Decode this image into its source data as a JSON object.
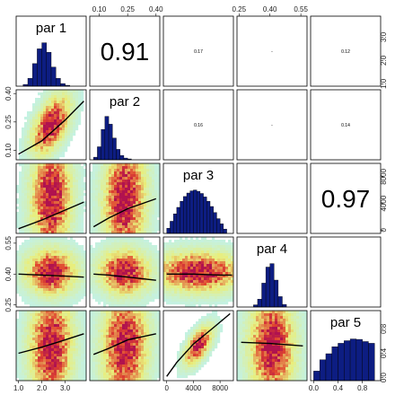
{
  "chart_data": {
    "type": "scatter-matrix",
    "parameters": [
      {
        "name": "par 1",
        "range": [
          0.9,
          3.9
        ],
        "ticks": [
          1.0,
          2.0,
          3.0
        ],
        "tick_labels": [
          "1.0",
          "2.0",
          "3.0"
        ],
        "hist": {
          "bins": [
            1.2,
            1.4,
            1.6,
            1.8,
            2.0,
            2.2,
            2.4,
            2.6,
            2.8,
            3.0,
            3.2
          ],
          "counts": [
            0.04,
            0.18,
            0.52,
            0.86,
            1.0,
            0.78,
            0.44,
            0.18,
            0.06,
            0.02
          ]
        }
      },
      {
        "name": "par 2",
        "range": [
          0.05,
          0.42
        ],
        "ticks": [
          0.1,
          0.25,
          0.4
        ],
        "tick_labels": [
          "0.10",
          "0.25",
          "0.40"
        ],
        "hist": {
          "bins": [
            0.07,
            0.09,
            0.11,
            0.13,
            0.15,
            0.17,
            0.19,
            0.21,
            0.23,
            0.25,
            0.27
          ],
          "counts": [
            0.06,
            0.3,
            0.7,
            1.0,
            0.82,
            0.5,
            0.24,
            0.1,
            0.04,
            0.02
          ]
        }
      },
      {
        "name": "par 3",
        "range": [
          -500,
          10000
        ],
        "ticks": [
          0,
          4000,
          8000
        ],
        "tick_labels": [
          "0",
          "4000",
          "8000"
        ],
        "hist": {
          "bins": [
            0,
            500,
            1000,
            1500,
            2000,
            2500,
            3000,
            3500,
            4000,
            4500,
            5000,
            5500,
            6000,
            6500,
            7000,
            7500,
            8000,
            8500,
            9000
          ],
          "counts": [
            0.12,
            0.28,
            0.45,
            0.6,
            0.74,
            0.85,
            0.93,
            0.98,
            1.0,
            0.97,
            0.92,
            0.84,
            0.74,
            0.62,
            0.48,
            0.34,
            0.22,
            0.1
          ]
        }
      },
      {
        "name": "par 4",
        "range": [
          0.24,
          0.58
        ],
        "ticks": [
          0.25,
          0.4,
          0.55
        ],
        "tick_labels": [
          "0.25",
          "0.40",
          "0.55"
        ],
        "hist": {
          "bins": [
            0.32,
            0.34,
            0.36,
            0.38,
            0.4,
            0.42,
            0.44,
            0.46,
            0.48
          ],
          "counts": [
            0.05,
            0.18,
            0.55,
            0.92,
            1.0,
            0.62,
            0.24,
            0.06
          ]
        }
      },
      {
        "name": "par 5",
        "range": [
          -0.05,
          1.1
        ],
        "ticks": [
          0.0,
          0.4,
          0.8
        ],
        "tick_labels": [
          "0.0",
          "0.4",
          "0.8"
        ],
        "hist": {
          "bins": [
            0.0,
            0.1,
            0.2,
            0.3,
            0.4,
            0.5,
            0.6,
            0.7,
            0.8,
            0.9,
            1.0
          ],
          "counts": [
            0.22,
            0.48,
            0.62,
            0.78,
            0.86,
            0.92,
            0.96,
            0.95,
            0.9,
            0.86
          ]
        }
      }
    ],
    "correlations": [
      {
        "row": 1,
        "col": 2,
        "label": "0.91",
        "size": "large"
      },
      {
        "row": 1,
        "col": 3,
        "label": "0.17",
        "size": "tiny"
      },
      {
        "row": 1,
        "col": 4,
        "label": "-",
        "size": "tiny"
      },
      {
        "row": 1,
        "col": 5,
        "label": "0.12",
        "size": "tiny"
      },
      {
        "row": 2,
        "col": 3,
        "label": "0.16",
        "size": "tiny"
      },
      {
        "row": 2,
        "col": 4,
        "label": "-",
        "size": "tiny"
      },
      {
        "row": 2,
        "col": 5,
        "label": "0.14",
        "size": "tiny"
      },
      {
        "row": 3,
        "col": 5,
        "label": "0.97",
        "size": "large"
      }
    ],
    "scatter_fits": [
      {
        "row": 2,
        "col": 1,
        "x": [
          1.0,
          2.0,
          3.0,
          3.8
        ],
        "y": [
          0.08,
          0.15,
          0.26,
          0.36
        ]
      },
      {
        "row": 3,
        "col": 1,
        "x": [
          1.0,
          2.0,
          3.0,
          3.8
        ],
        "y": [
          200,
          1500,
          3000,
          4200
        ]
      },
      {
        "row": 4,
        "col": 1,
        "x": [
          1.0,
          2.0,
          3.0,
          3.8
        ],
        "y": [
          0.4,
          0.395,
          0.39,
          0.385
        ]
      },
      {
        "row": 5,
        "col": 1,
        "x": [
          1.0,
          2.0,
          3.0,
          3.8
        ],
        "y": [
          0.4,
          0.5,
          0.62,
          0.72
        ]
      },
      {
        "row": 3,
        "col": 2,
        "x": [
          0.07,
          0.15,
          0.25,
          0.4
        ],
        "y": [
          500,
          1800,
          3200,
          4700
        ]
      },
      {
        "row": 4,
        "col": 2,
        "x": [
          0.07,
          0.15,
          0.25,
          0.4
        ],
        "y": [
          0.4,
          0.395,
          0.385,
          0.37
        ]
      },
      {
        "row": 5,
        "col": 2,
        "x": [
          0.07,
          0.15,
          0.25,
          0.4
        ],
        "y": [
          0.38,
          0.48,
          0.62,
          0.72
        ]
      },
      {
        "row": 4,
        "col": 3,
        "x": [
          0,
          4000,
          8000,
          9800
        ],
        "y": [
          0.4,
          0.4,
          0.395,
          0.395
        ]
      },
      {
        "row": 5,
        "col": 3,
        "x": [
          0,
          1500,
          4000,
          7000,
          9500
        ],
        "y": [
          0.02,
          0.25,
          0.55,
          0.82,
          1.05
        ]
      },
      {
        "row": 5,
        "col": 4,
        "x": [
          0.26,
          0.4,
          0.56
        ],
        "y": [
          0.58,
          0.56,
          0.52
        ]
      }
    ],
    "scatter_stats": [
      {
        "row": 2,
        "col": 1,
        "slope": 0.9,
        "sx": 0.75,
        "sy": 1.0
      },
      {
        "row": 3,
        "col": 1,
        "slope": 0.17,
        "sx": 0.8,
        "sy": 2.2
      },
      {
        "row": 4,
        "col": 1,
        "slope": -0.02,
        "sx": 1.0,
        "sy": 0.9
      },
      {
        "row": 5,
        "col": 1,
        "slope": 0.12,
        "sx": 0.85,
        "sy": 2.1
      },
      {
        "row": 3,
        "col": 2,
        "slope": 0.16,
        "sx": 0.85,
        "sy": 2.2
      },
      {
        "row": 4,
        "col": 2,
        "slope": -0.02,
        "sx": 1.0,
        "sy": 0.9
      },
      {
        "row": 5,
        "col": 2,
        "slope": 0.14,
        "sx": 0.9,
        "sy": 2.1
      },
      {
        "row": 4,
        "col": 3,
        "slope": 0.0,
        "sx": 1.7,
        "sy": 0.8
      },
      {
        "row": 5,
        "col": 3,
        "slope": 0.97,
        "sx": 0.55,
        "sy": 0.6
      },
      {
        "row": 5,
        "col": 4,
        "slope": -0.02,
        "sx": 0.9,
        "sy": 2.1
      }
    ],
    "colors": {
      "hist_fill": "#0d1d82",
      "hist_stroke": "#000000",
      "fit_line": "#000000",
      "density_low": "#bff2f0",
      "density_mid": "#e9ee7a",
      "density_high": "#e0452f",
      "density_peak": "#b0124f",
      "panel_border": "#000000"
    }
  }
}
